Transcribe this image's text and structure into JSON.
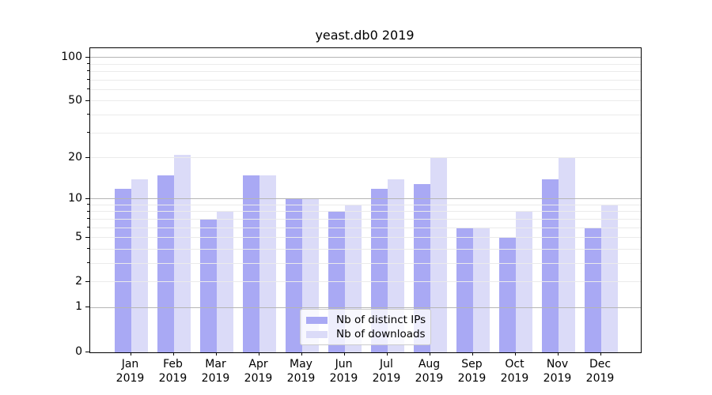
{
  "figure": {
    "background_color": "#ffffff"
  },
  "chart_data": {
    "type": "bar",
    "title": "yeast.db0 2019",
    "categories": [
      "Jan",
      "Feb",
      "Mar",
      "Apr",
      "May",
      "Jun",
      "Jul",
      "Aug",
      "Sep",
      "Oct",
      "Nov",
      "Dec"
    ],
    "x_sub_label": "2019",
    "series": [
      {
        "name": "Nb of distinct IPs",
        "color": "#a9a9f4",
        "values": [
          12,
          15,
          7,
          15,
          10,
          8,
          12,
          13,
          6,
          5,
          14,
          6
        ]
      },
      {
        "name": "Nb of downloads",
        "color": "#dbdbf8",
        "values": [
          14,
          21,
          8,
          15,
          10,
          9,
          14,
          20,
          6,
          8,
          20,
          9
        ]
      }
    ],
    "xlabel": "",
    "ylabel": "",
    "yscale": "log1p",
    "ylim": [
      0,
      116
    ],
    "y_ticks": [
      0,
      1,
      2,
      5,
      10,
      20,
      50,
      100
    ],
    "y_major_gridlines": [
      1,
      10,
      100
    ],
    "y_minor_gridlines": [
      2,
      3,
      4,
      5,
      6,
      7,
      8,
      9,
      20,
      30,
      40,
      50,
      60,
      70,
      80,
      90
    ],
    "grid": true,
    "legend_position": "lower center",
    "grid_major_color": "#b5b5b5",
    "grid_minor_color": "#ebebeb",
    "axis_color": "#000000"
  }
}
